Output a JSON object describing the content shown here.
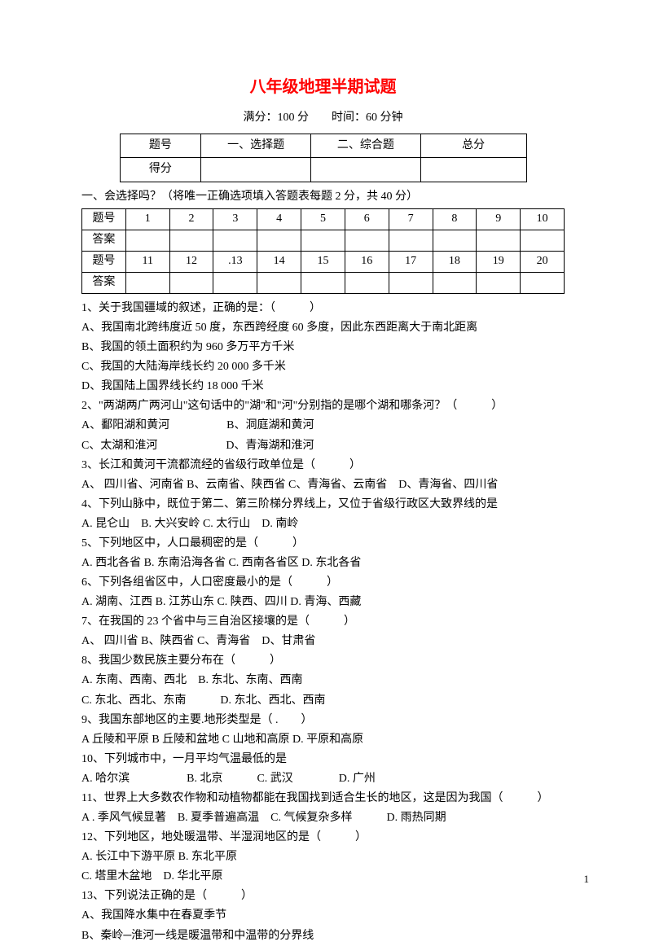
{
  "title": "八年级地理半期试题",
  "subtitle": "满分：100 分　　时间：60 分钟",
  "scoreTable": {
    "r1c1": "题号",
    "r1c2": "一、选择题",
    "r1c3": "二、综合题",
    "r1c4": "总分",
    "r2c1": "得分"
  },
  "sectionLabel": "一、会选择吗？（将唯一正确选项填入答题表每题 2 分，共 40 分）",
  "answerTable": {
    "rowLabel1": "题号",
    "rowLabel2": "答案",
    "nums1": [
      "1",
      "2",
      "3",
      "4",
      "5",
      "6",
      "7",
      "8",
      "9",
      "10"
    ],
    "nums2": [
      "11",
      "12",
      ".13",
      "14",
      "15",
      "16",
      "17",
      "18",
      "19",
      "20"
    ]
  },
  "questions": [
    "1、关于我国疆域的叙述，正确的是：（　　　）",
    "A、我国南北跨纬度近 50 度，东西跨经度 60 多度，因此东西距离大于南北距离",
    "B、我国的领土面积约为 960 多万平方千米",
    "C、我国的大陆海岸线长约 20 000 多千米",
    "D、我国陆上国界线长约 18 000 千米",
    "2、\"两湖两广两河山\"这句话中的\"湖\"和\"河\"分别指的是哪个湖和哪条河？（　　　）",
    "A、鄱阳湖和黄河　　　　　B、洞庭湖和黄河",
    "C、太湖和淮河　　　　　　D、青海湖和淮河",
    "3、长江和黄河干流都流经的省级行政单位是（　　　）",
    "A、 四川省、河南省 B、云南省、陕西省 C、青海省、云南省　D、青海省、四川省",
    "4、下列山脉中，既位于第二、第三阶梯分界线上，又位于省级行政区大致界线的是",
    "A. 昆仑山　B. 大兴安岭 C. 太行山　D. 南岭",
    "5、下列地区中，人口最稠密的是（　　　）",
    "A. 西北各省 B. 东南沿海各省 C. 西南各省区 D. 东北各省",
    "6、下列各组省区中，人口密度最小的是（　　　）",
    "A. 湖南、江西 B. 江苏山东 C. 陕西、四川 D. 青海、西藏",
    "7、在我国的 23 个省中与三自治区接壤的是（　　　）",
    "A、 四川省 B、陕西省 C、青海省　D、甘肃省",
    "8、我国少数民族主要分布在（　　　）",
    "A. 东南、西南、西北　B. 东北、东南、西南",
    "C. 东北、西北、东南　　　D. 东北、西北、西南",
    "9、我国东部地区的主要.地形类型是（ .　　）",
    "A 丘陵和平原 B 丘陵和盆地 C 山地和高原 D. 平原和高原",
    "10、下列城市中，一月平均气温最低的是",
    "A. 哈尔滨　　　　　B. 北京　　　C. 武汉　　　　D. 广州",
    "11、世界上大多数农作物和动植物都能在我国找到适合生长的地区，这是因为我国（　　　）",
    "A . 季风气候显著　B. 夏季普遍高温　C. 气候复杂多样　　　D. 雨热同期",
    "12、下列地区，地处暖温带、半湿润地区的是（　　　）",
    "A. 长江中下游平原 B. 东北平原",
    "C. 塔里木盆地　D. 华北平原",
    "13、下列说法正确的是（　　　）",
    "A、我国降水集中在春夏季节",
    "B、秦岭─淮河一线是暖温带和中温带的分界线"
  ],
  "pageNum": "1"
}
